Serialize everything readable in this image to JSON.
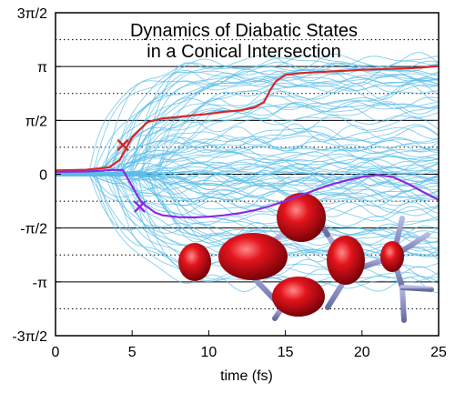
{
  "chart_data": {
    "type": "line",
    "title_lines": [
      "Dynamics of Diabatic States",
      "in a Conical Intersection"
    ],
    "xlabel": "time (fs)",
    "ylabel": "",
    "xlim": [
      0,
      25
    ],
    "ylim": [
      -4.712389,
      4.712389
    ],
    "x_ticks": [
      {
        "value": 0,
        "label": "0"
      },
      {
        "value": 5,
        "label": "5"
      },
      {
        "value": 10,
        "label": "10"
      },
      {
        "value": 15,
        "label": "15"
      },
      {
        "value": 20,
        "label": "20"
      },
      {
        "value": 25,
        "label": "25"
      }
    ],
    "y_ticks": [
      {
        "value": 4.712389,
        "label": "3π/2"
      },
      {
        "value": 3.141593,
        "label": "π"
      },
      {
        "value": 1.570796,
        "label": "π/2"
      },
      {
        "value": 0,
        "label": "0"
      },
      {
        "value": -1.570796,
        "label": "-π/2"
      },
      {
        "value": -3.141593,
        "label": "-π"
      },
      {
        "value": -4.712389,
        "label": "-3π/2"
      }
    ],
    "grid_solid_y": [
      3.141593,
      1.570796,
      0,
      -1.570796,
      -3.141593
    ],
    "grid_dotted_y": [
      3.926991,
      2.356194,
      0.785398,
      -0.785398,
      -2.356194,
      -3.926991
    ],
    "series": [
      {
        "color": "#d62728",
        "x": [
          0,
          2,
          3.5,
          4.2,
          5,
          6,
          7,
          8,
          9,
          10,
          11,
          12,
          13,
          13.6,
          14,
          14.4,
          15,
          16,
          17,
          18,
          19,
          20,
          21,
          22,
          23,
          24,
          25
        ],
        "y": [
          0.11,
          0.13,
          0.2,
          0.42,
          1.08,
          1.52,
          1.63,
          1.67,
          1.72,
          1.76,
          1.82,
          1.86,
          1.95,
          2.1,
          2.45,
          2.72,
          2.9,
          2.95,
          2.98,
          3.0,
          3.02,
          3.05,
          3.06,
          3.08,
          3.09,
          3.12,
          3.16
        ]
      },
      {
        "color": "#8a2be2",
        "x": [
          0,
          2,
          3,
          3.8,
          4.4,
          5,
          5.6,
          6.5,
          7,
          8,
          9,
          10,
          11,
          12,
          13,
          14,
          15,
          16,
          17,
          18,
          19,
          20,
          21,
          22,
          23,
          24,
          25
        ],
        "y": [
          0.07,
          0.08,
          0.1,
          0.13,
          0.12,
          -0.35,
          -0.82,
          -1.12,
          -1.2,
          -1.25,
          -1.26,
          -1.24,
          -1.2,
          -1.14,
          -1.05,
          -0.93,
          -0.78,
          -0.62,
          -0.45,
          -0.3,
          -0.18,
          -0.08,
          -0.02,
          -0.08,
          -0.28,
          -0.52,
          -0.75
        ]
      }
    ],
    "markers": [
      {
        "x": 4.4,
        "y": 0.85,
        "color": "#d62728",
        "symbol": "x"
      },
      {
        "x": 5.5,
        "y": -0.95,
        "color": "#8a2be2",
        "symbol": "x"
      }
    ],
    "background_trajectory_color": "#5bbde8",
    "background_trajectory_count": 100,
    "molecule_colors": {
      "lobe": "#d0101a",
      "bond": "#8a90c8"
    }
  }
}
